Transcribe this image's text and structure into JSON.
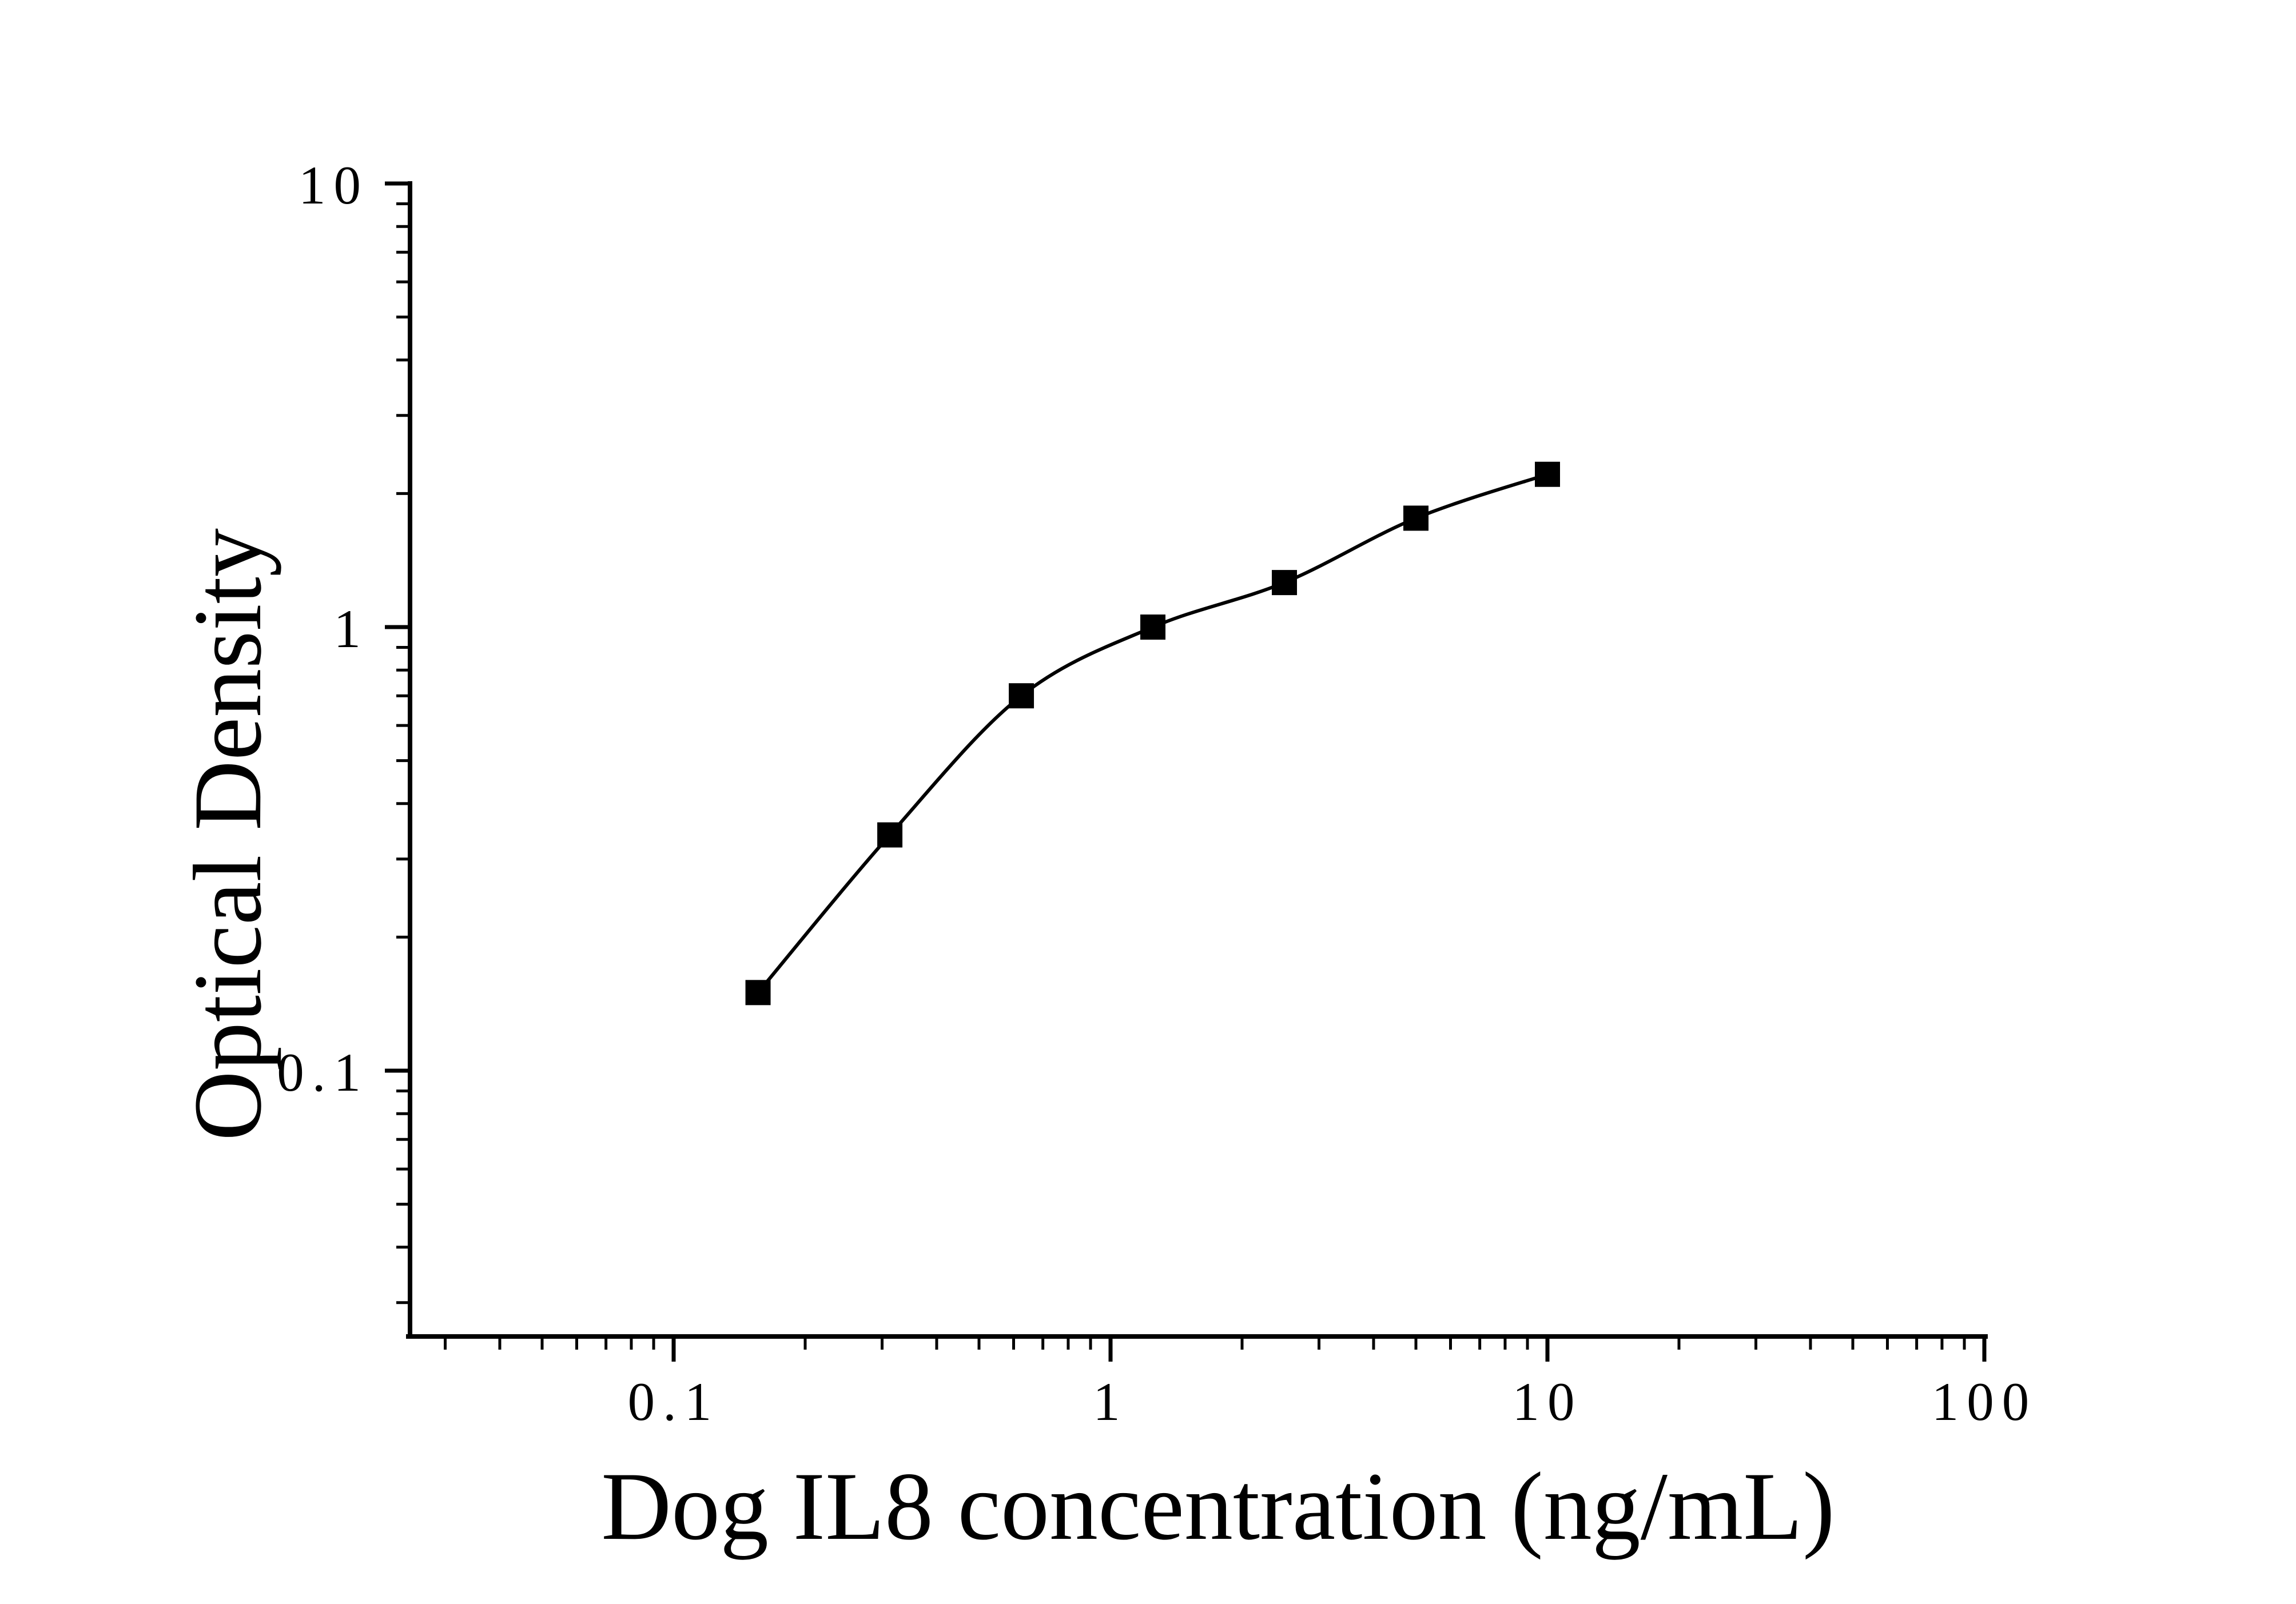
{
  "chart_data": {
    "type": "scatter",
    "subtype": "elisa-standard-curve",
    "title": "",
    "xlabel": "Dog IL8 concentration (ng/mL)",
    "ylabel": "Optical Density",
    "x_scale": "log",
    "y_scale": "log",
    "xlim": [
      0.0245,
      105
    ],
    "ylim": [
      0.0235,
      10
    ],
    "x_ticks": {
      "values": [
        0.1,
        1,
        10,
        100
      ],
      "labels": [
        "0.1",
        "1",
        "10",
        "100"
      ]
    },
    "y_ticks": {
      "values": [
        0.1,
        1,
        10
      ],
      "labels": [
        "0.1",
        "1",
        "10"
      ]
    },
    "minor_ticks": "log multiples 2-9 per decade, ticks outside axes",
    "grid": false,
    "legend": null,
    "marker": "filled-square",
    "line_style": "smooth fit curve through points",
    "color": "#000000",
    "background": "#ffffff",
    "points": [
      {
        "x": 0.156,
        "y": 0.15
      },
      {
        "x": 0.3125,
        "y": 0.34
      },
      {
        "x": 0.625,
        "y": 0.7
      },
      {
        "x": 1.25,
        "y": 1.0
      },
      {
        "x": 2.5,
        "y": 1.26
      },
      {
        "x": 5,
        "y": 1.76
      },
      {
        "x": 10,
        "y": 2.21
      }
    ]
  }
}
